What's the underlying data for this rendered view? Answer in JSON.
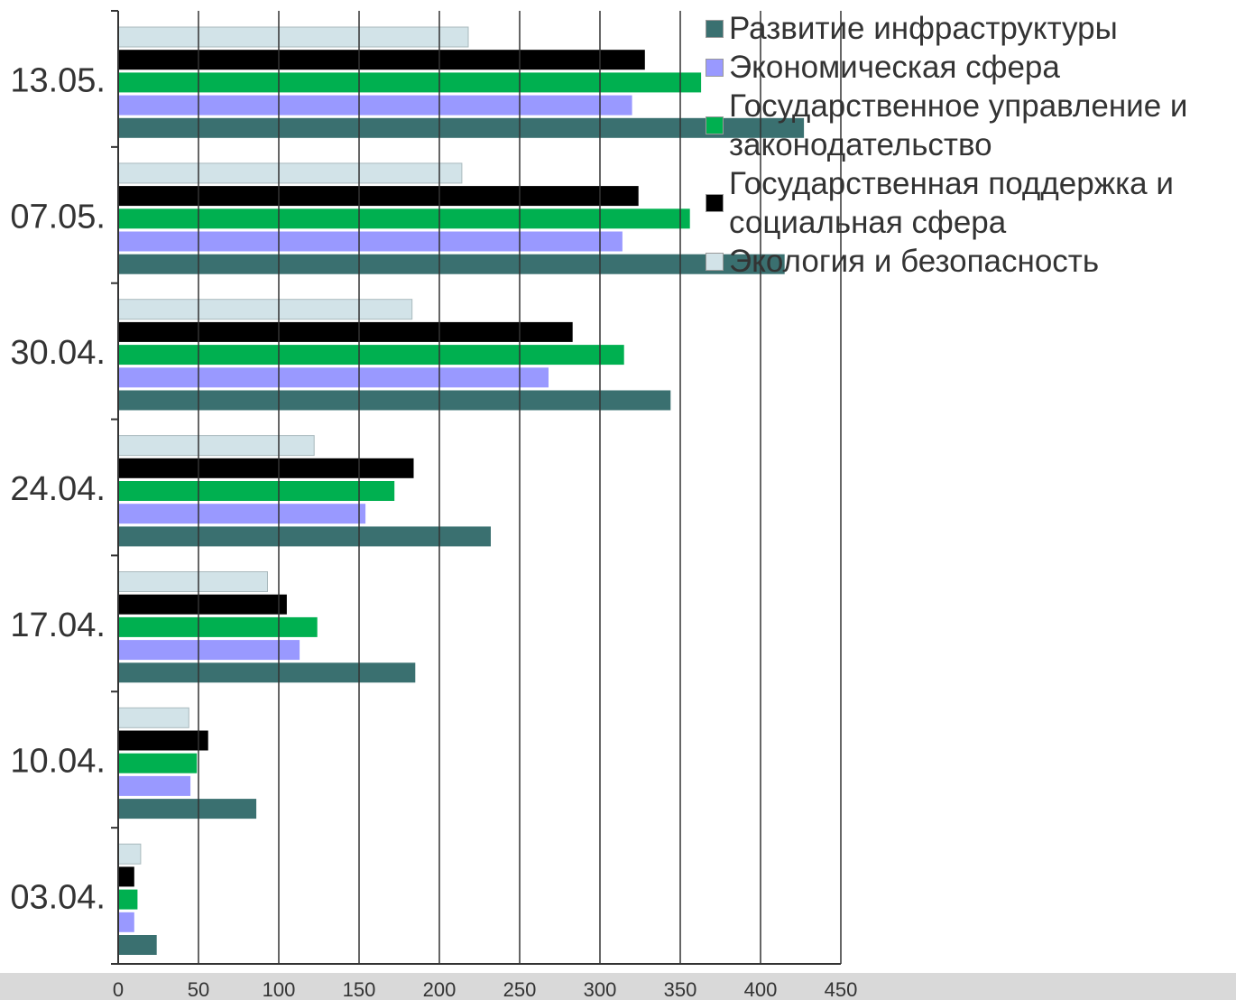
{
  "chart_data": {
    "type": "bar",
    "orientation": "horizontal",
    "categories": [
      "13.05.",
      "07.05.",
      "30.04.",
      "24.04.",
      "17.04.",
      "10.04.",
      "03.04."
    ],
    "series": [
      {
        "name": "Развитие инфраструктуры",
        "color": "#3a7070",
        "values": [
          427,
          415,
          344,
          232,
          185,
          86,
          24
        ]
      },
      {
        "name": "Экономическая сфера",
        "color": "#9999ff",
        "values": [
          320,
          314,
          268,
          154,
          113,
          45,
          10
        ]
      },
      {
        "name": "Государственное управление и законодательство",
        "color": "#00b050",
        "values": [
          363,
          356,
          315,
          172,
          124,
          49,
          12
        ]
      },
      {
        "name": "Государственная поддержка и социальная сфера",
        "color": "#000000",
        "values": [
          328,
          324,
          283,
          184,
          105,
          56,
          10
        ]
      },
      {
        "name": "Экология и безопасность",
        "color": "#d2e3e8",
        "values": [
          218,
          214,
          183,
          122,
          93,
          44,
          14
        ]
      }
    ],
    "xlim": [
      0,
      450
    ],
    "x_ticks": [
      "0",
      "50",
      "100",
      "150",
      "200",
      "250",
      "300",
      "350",
      "400",
      "450"
    ],
    "grid": "vertical",
    "legend_position": "top-right"
  }
}
